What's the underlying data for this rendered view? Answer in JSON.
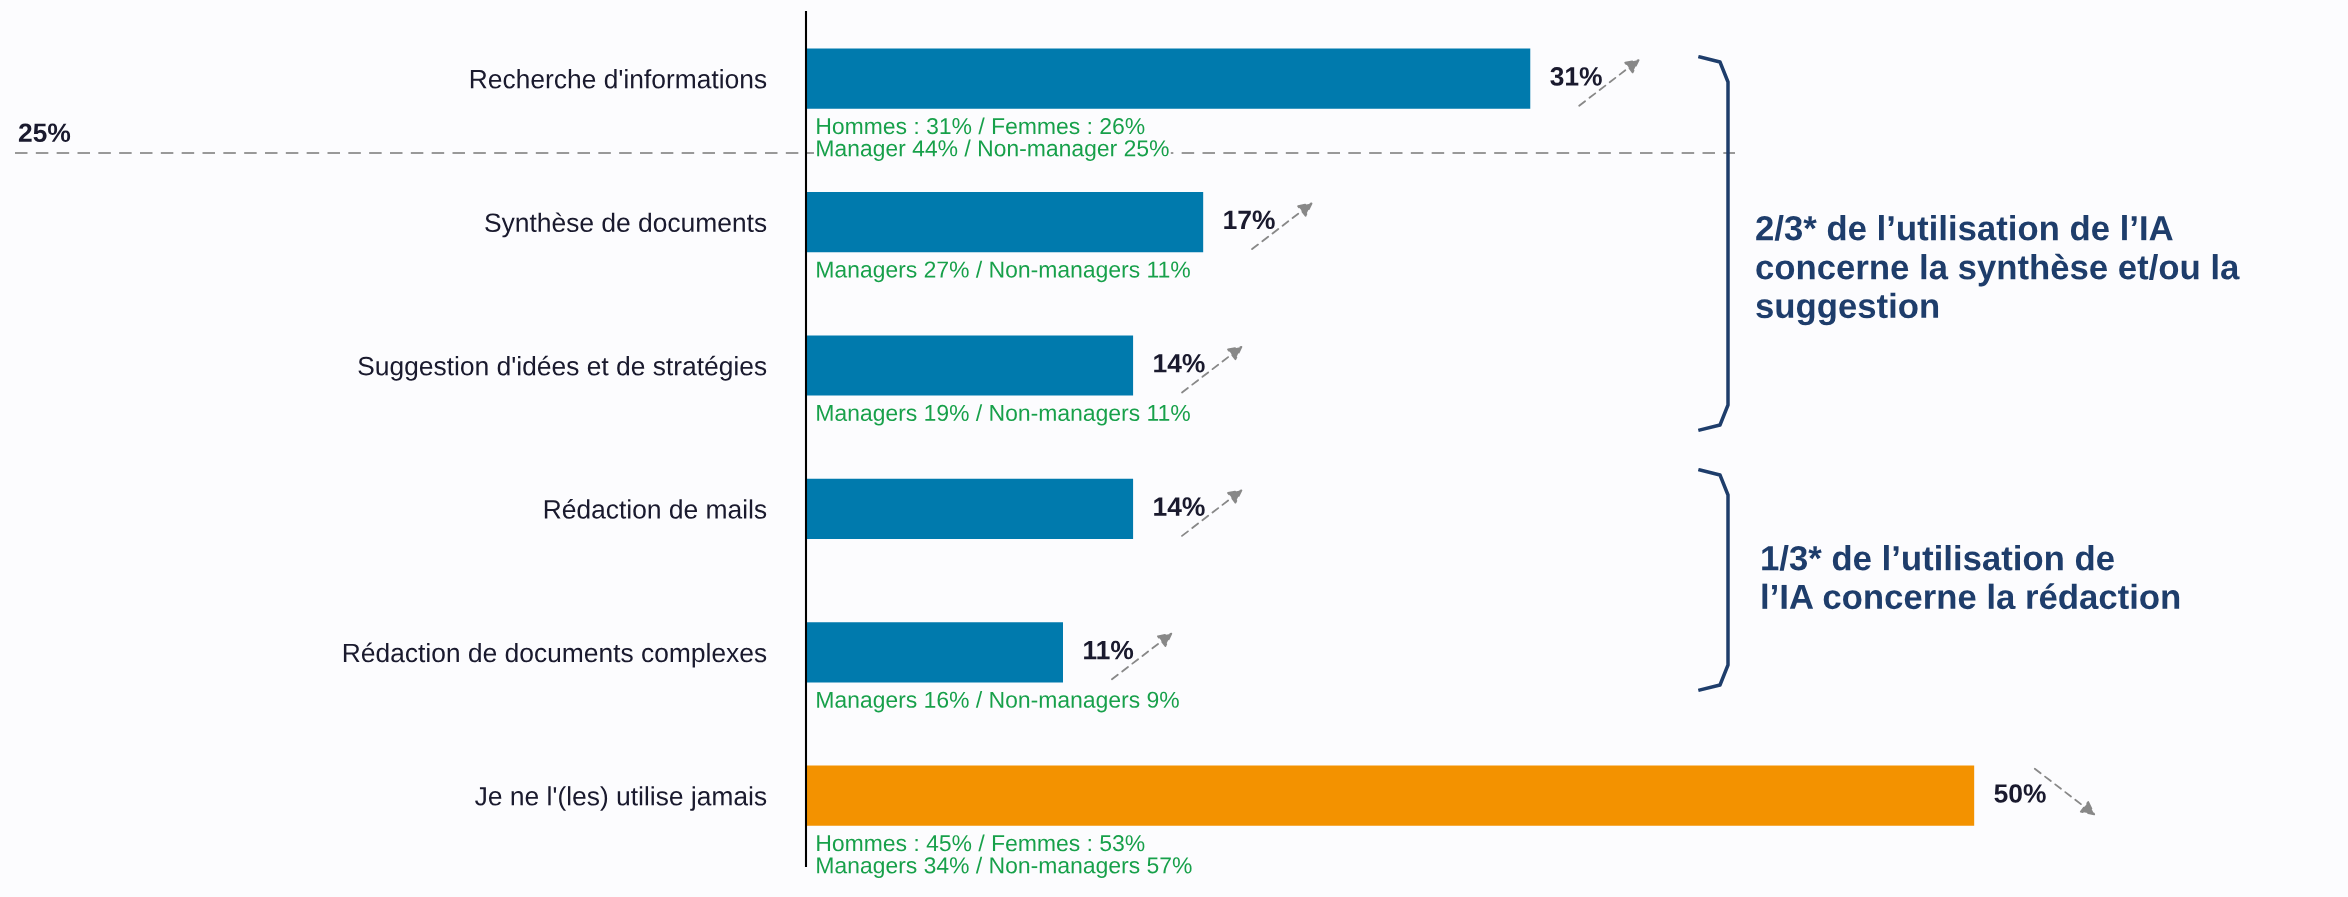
{
  "chart_data": {
    "type": "bar",
    "orientation": "horizontal",
    "categories": [
      "Recherche d'informations",
      "Synthèse de documents",
      "Suggestion d'idées et de stratégies",
      "Rédaction de mails",
      "Rédaction de documents complexes",
      "Je ne l'(les) utilise jamais"
    ],
    "values": [
      31,
      17,
      14,
      14,
      11,
      50
    ],
    "colors": [
      "#007aad",
      "#007aad",
      "#007aad",
      "#007aad",
      "#007aad",
      "#f39200"
    ],
    "value_labels": [
      "31%",
      "17%",
      "14%",
      "14%",
      "11%",
      "50%"
    ],
    "annotations": [
      "25%",
      "Hommes : 31% / Femmes : 26%\nManager 44% / Non-manager 25%",
      "Managers 27% / Non-managers 11%",
      "Managers 19% / Non-managers 11%",
      "Managers 16% / Non-managers 9%",
      "Hommes : 45% / Femmes : 53%\nManagers 34% / Non-managers 57%",
      "2/3* de l’utilisation de l’IA\nconcerne la synthèse et/ou la\nsuggestion",
      "1/3* de l’utilisation de\nl’IA concerne la rédaction"
    ]
  }
}
